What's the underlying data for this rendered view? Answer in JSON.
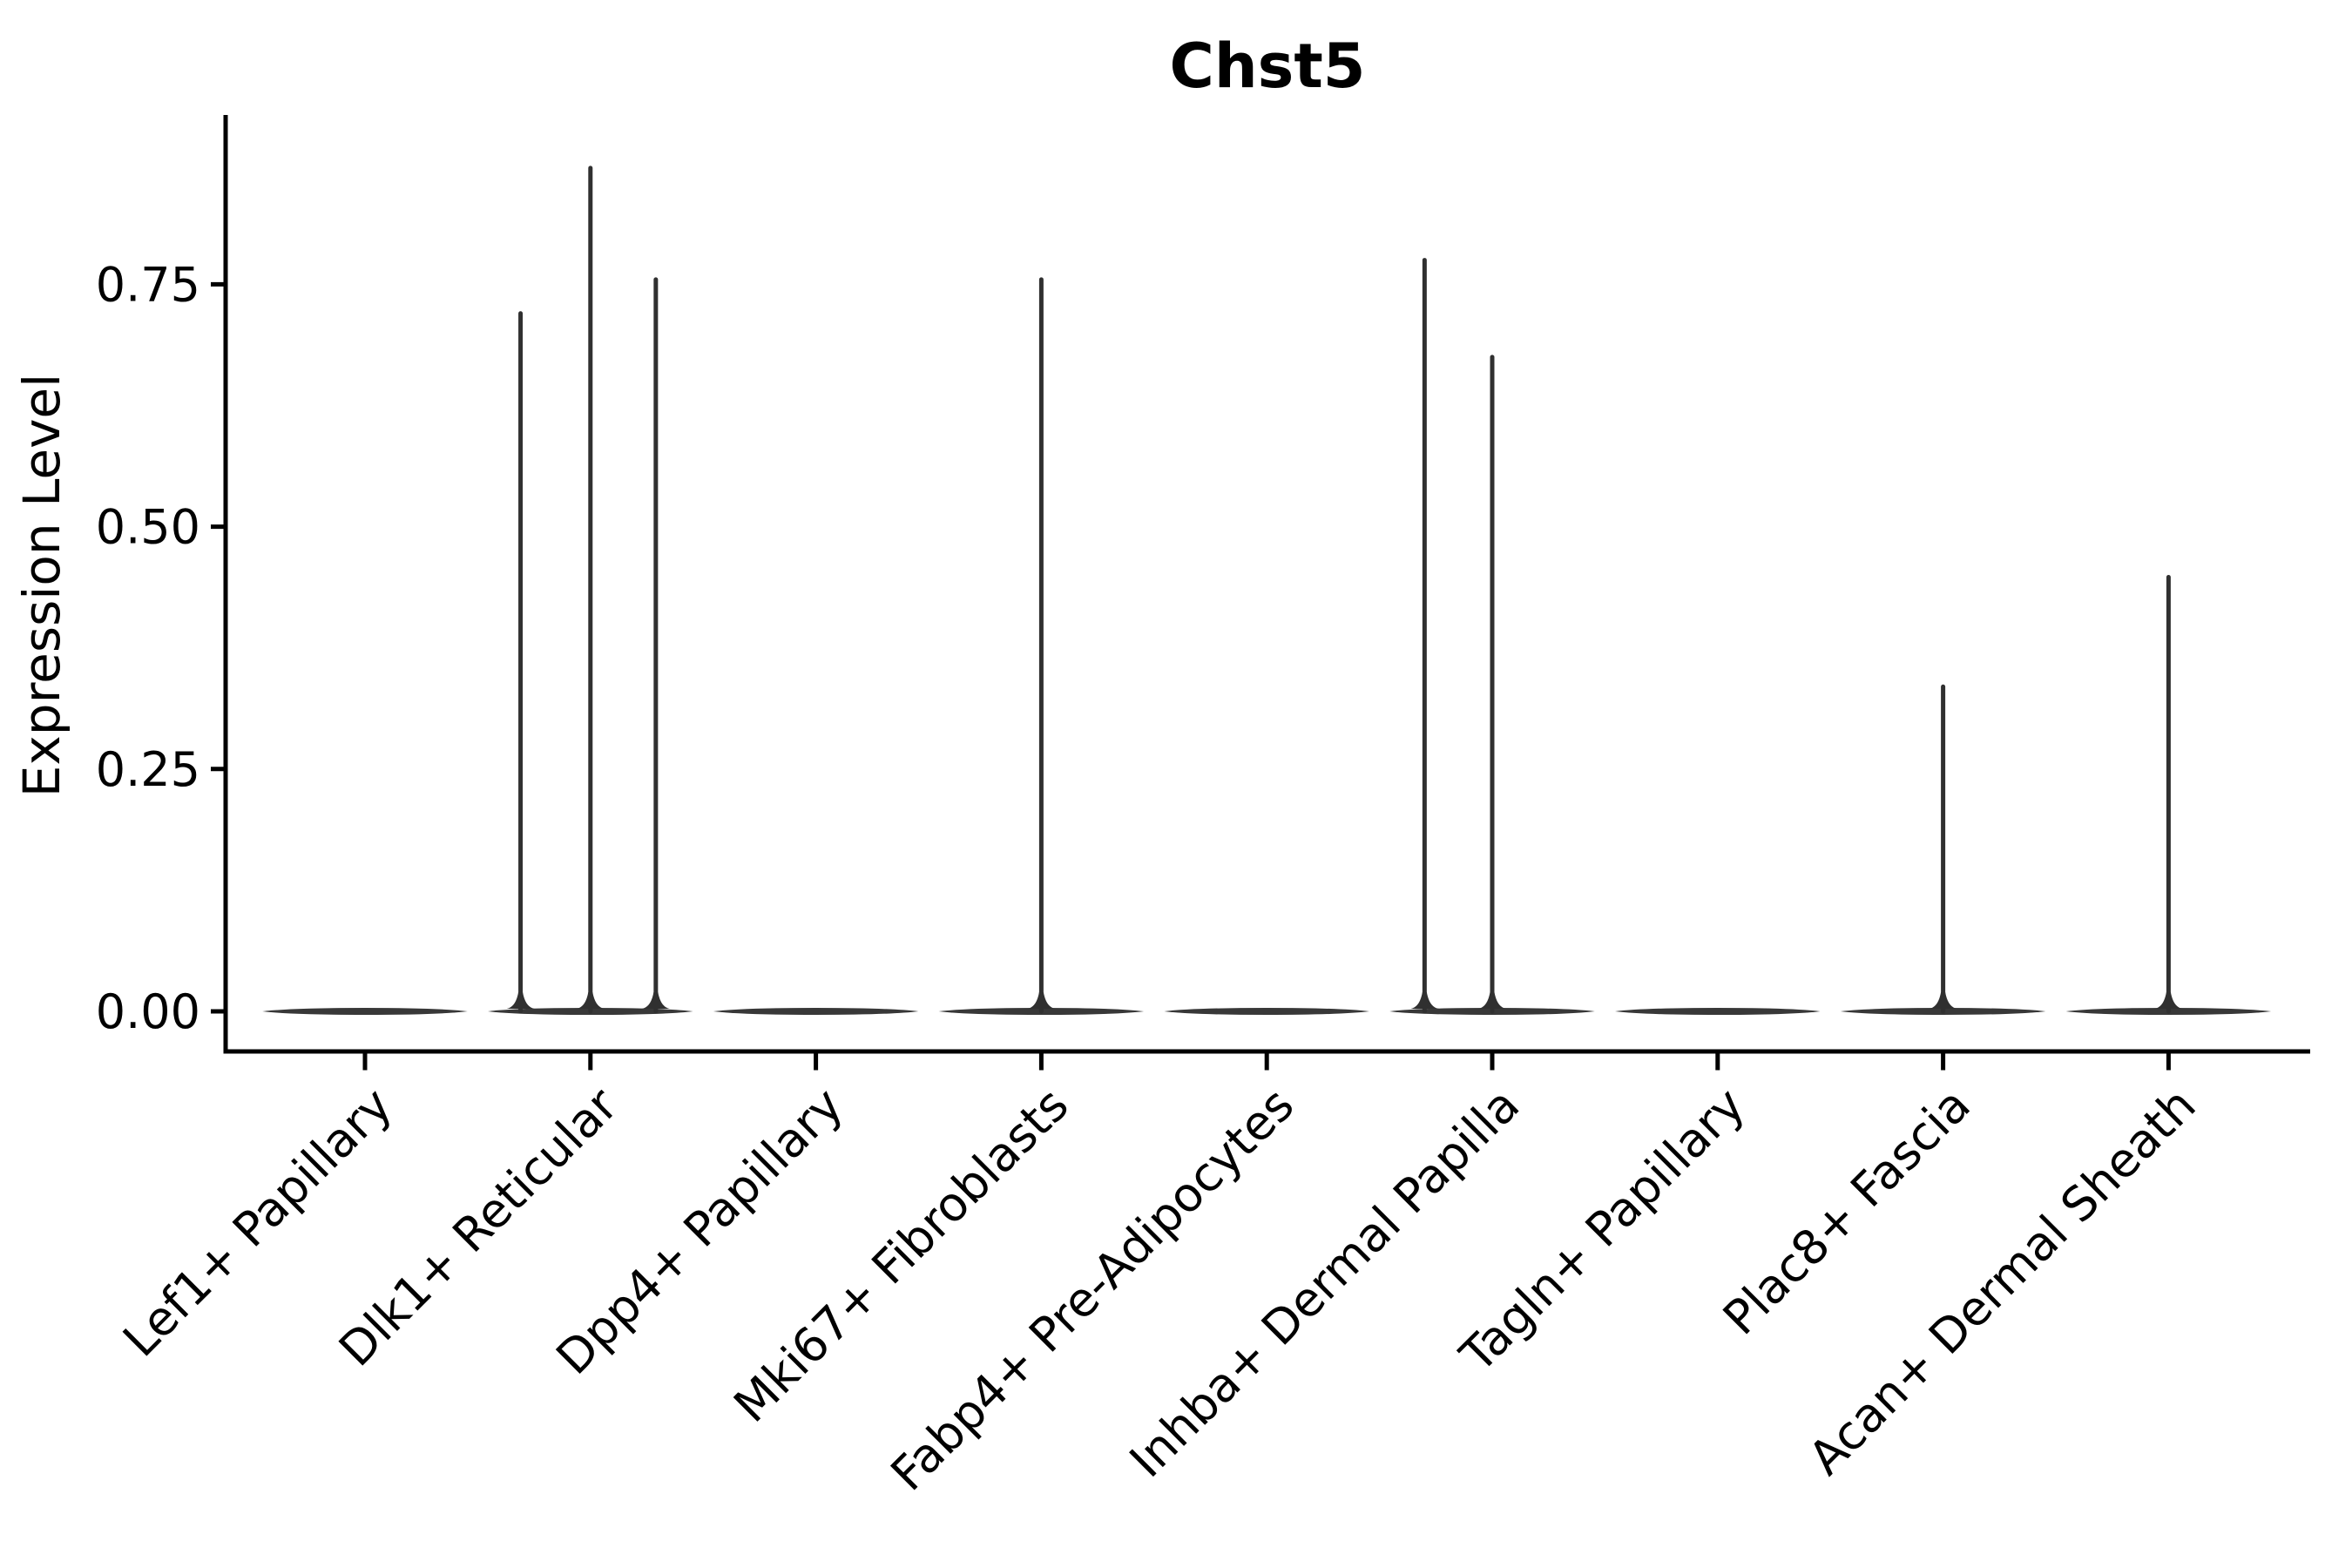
{
  "title": "Chst5",
  "chart_data": {
    "type": "violin",
    "title": "Chst5",
    "xlabel": "",
    "ylabel": "Expression Level",
    "legend_position": "none",
    "grid": false,
    "background_color": "#ffffff",
    "axis_color": "#000000",
    "violin_color": "#383838",
    "spike_color": "#303030",
    "ylim": [
      0.0,
      0.93
    ],
    "y_tick_values": [
      0.0,
      0.25,
      0.5,
      0.75
    ],
    "y_tick_labels": [
      "0.00",
      "0.25",
      "0.50",
      "0.75"
    ],
    "x_tick_rotation_deg": 45,
    "categories": [
      "Lef1+ Papillary",
      "Dlk1+ Reticular",
      "Dpp4+ Papillary",
      "Mki67+ Fibroblasts",
      "Fabp4+ Pre-Adipocytes",
      "Inhba+ Dermal Papilla",
      "Tagln+ Papillary",
      "Plac8+ Fascia",
      "Acan+ Dermal Sheath"
    ],
    "violins": [
      {
        "category": "Lef1+ Papillary",
        "baseline_value": 0.0,
        "spikes": []
      },
      {
        "category": "Dlk1+ Reticular",
        "baseline_value": 0.0,
        "spikes": [
          {
            "offset_frac": -0.31,
            "value": 0.72
          },
          {
            "offset_frac": 0.0,
            "value": 0.87
          },
          {
            "offset_frac": 0.29,
            "value": 0.755
          }
        ]
      },
      {
        "category": "Dpp4+ Papillary",
        "baseline_value": 0.0,
        "spikes": []
      },
      {
        "category": "Mki67+ Fibroblasts",
        "baseline_value": 0.0,
        "spikes": [
          {
            "offset_frac": 0.0,
            "value": 0.755
          }
        ]
      },
      {
        "category": "Fabp4+ Pre-Adipocytes",
        "baseline_value": 0.0,
        "spikes": []
      },
      {
        "category": "Inhba+ Dermal Papilla",
        "baseline_value": 0.0,
        "spikes": [
          {
            "offset_frac": -0.3,
            "value": 0.775
          },
          {
            "offset_frac": 0.0,
            "value": 0.675
          }
        ]
      },
      {
        "category": "Tagln+ Papillary",
        "baseline_value": 0.0,
        "spikes": []
      },
      {
        "category": "Plac8+ Fascia",
        "baseline_value": 0.0,
        "spikes": [
          {
            "offset_frac": 0.0,
            "value": 0.335
          }
        ]
      },
      {
        "category": "Acan+ Dermal Sheath",
        "baseline_value": 0.0,
        "spikes": [
          {
            "offset_frac": 0.0,
            "value": 0.448
          }
        ]
      }
    ],
    "violin_half_width_frac": 0.455
  }
}
